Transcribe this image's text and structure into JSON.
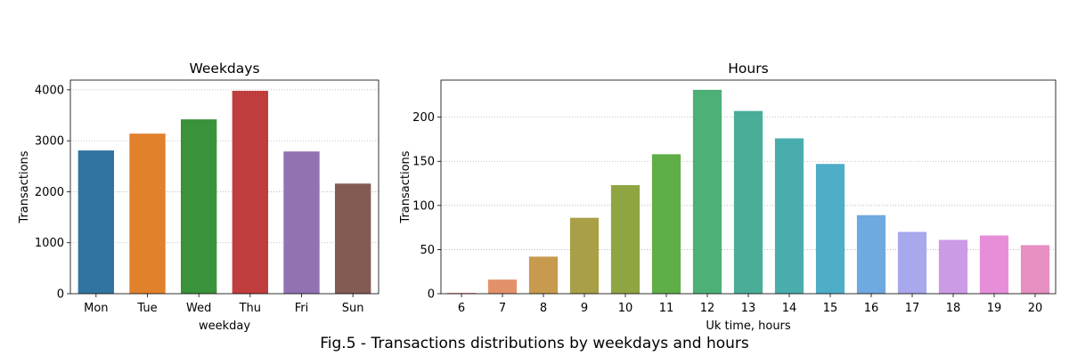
{
  "figure": {
    "caption": "Fig.5 - Transactions distributions by weekdays and hours"
  },
  "chart_data": [
    {
      "type": "bar",
      "title": "Weekdays",
      "xlabel": "weekday",
      "ylabel": "Transactions",
      "categories": [
        "Mon",
        "Tue",
        "Wed",
        "Thu",
        "Fri",
        "Sun"
      ],
      "values": [
        2810,
        3140,
        3420,
        3980,
        2790,
        2160
      ],
      "colors": [
        "#3274a1",
        "#e1812c",
        "#3a923a",
        "#c03d3e",
        "#9372b2",
        "#845b53"
      ],
      "ylim": [
        0,
        4190
      ],
      "yticks": [
        0,
        1000,
        2000,
        3000,
        4000
      ],
      "grid": "y-dotted"
    },
    {
      "type": "bar",
      "title": "Hours",
      "xlabel": "Uk time, hours",
      "ylabel": "Transactions",
      "categories": [
        "6",
        "7",
        "8",
        "9",
        "10",
        "11",
        "12",
        "13",
        "14",
        "15",
        "16",
        "17",
        "18",
        "19",
        "20"
      ],
      "values": [
        1,
        16,
        42,
        86,
        123,
        158,
        231,
        207,
        176,
        147,
        89,
        70,
        61,
        66,
        55
      ],
      "colors": [
        "#e7918b",
        "#e3916a",
        "#c79a4e",
        "#a99f47",
        "#8fa541",
        "#5fae48",
        "#4cb077",
        "#49ad98",
        "#4aadad",
        "#4faec7",
        "#6ea9e0",
        "#a8a8ec",
        "#cc9be6",
        "#e68fd8",
        "#e68fc0"
      ],
      "ylim": [
        0,
        242
      ],
      "yticks": [
        0,
        50,
        100,
        150,
        200
      ],
      "grid": "y-dotted"
    }
  ]
}
